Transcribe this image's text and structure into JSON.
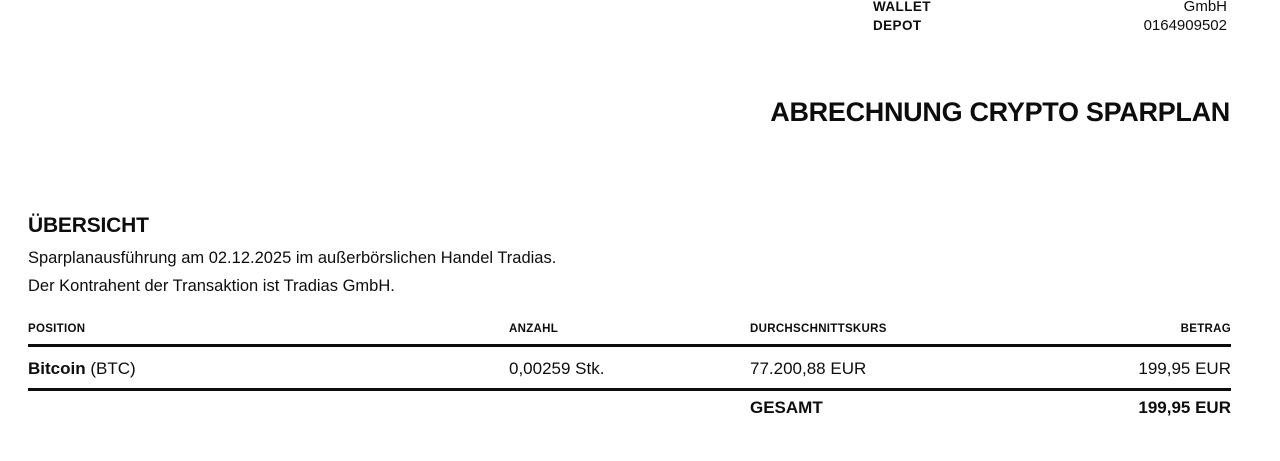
{
  "header": {
    "fields": [
      {
        "label": "WALLET",
        "value": "GmbH"
      },
      {
        "label": "DEPOT",
        "value": "0164909502"
      }
    ]
  },
  "title": "ABRECHNUNG CRYPTO SPARPLAN",
  "overview": {
    "heading": "ÜBERSICHT",
    "line1": "Sparplanausführung am 02.12.2025 im außerbörslichen Handel Tradias.",
    "line2": "Der Kontrahent der Transaktion ist Tradias GmbH."
  },
  "table": {
    "columns": {
      "position": "POSITION",
      "anzahl": "ANZAHL",
      "kurs": "DURCHSCHNITTSKURS",
      "betrag": "BETRAG"
    },
    "rows": [
      {
        "position_name": "Bitcoin",
        "position_suffix": " (BTC)",
        "anzahl": "0,00259 Stk.",
        "kurs": "77.200,88 EUR",
        "betrag": "199,95 EUR"
      }
    ],
    "total": {
      "label": "GESAMT",
      "betrag": "199,95 EUR"
    }
  },
  "colors": {
    "background": "#ffffff",
    "text": "#0d0d0d",
    "rule": "#0d0d0d"
  }
}
